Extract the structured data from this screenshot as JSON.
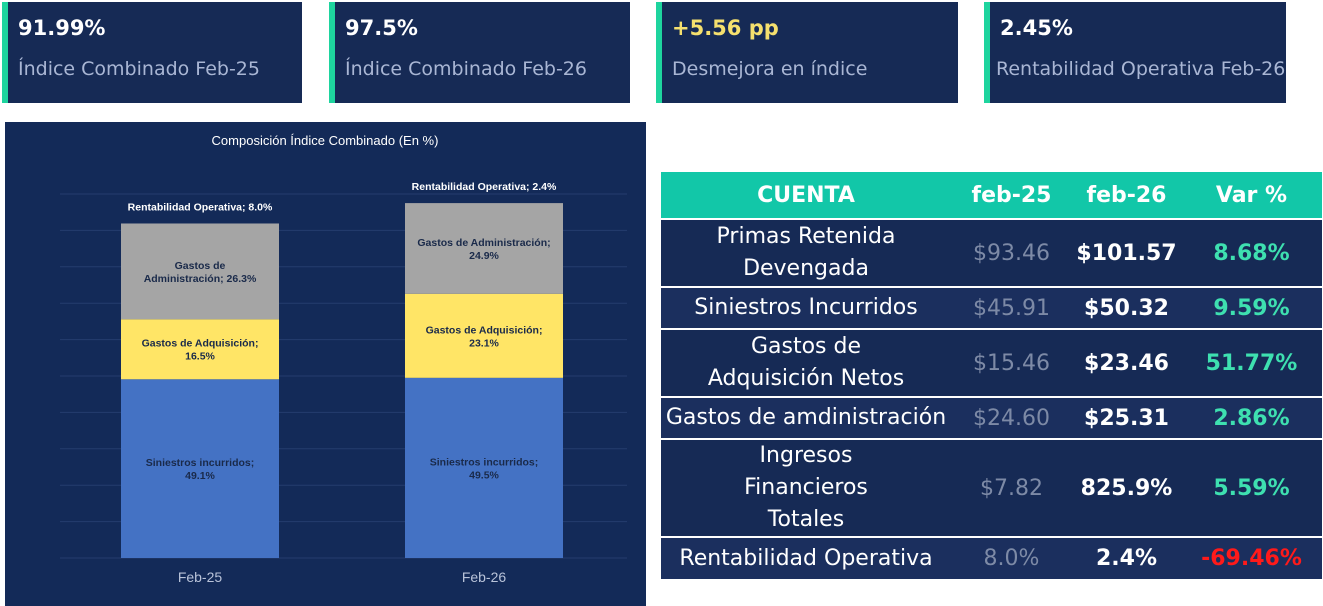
{
  "kpis": [
    {
      "value": "91.99%",
      "label": "Índice Combinado Feb-25",
      "value_color": "#ffffff"
    },
    {
      "value": "97.5%",
      "label": "Índice Combinado Feb-26",
      "value_color": "#ffffff"
    },
    {
      "value": "+5.56 pp",
      "label": "Desmejora en índice",
      "value_color": "#f5e06e"
    },
    {
      "value": "2.45%",
      "label": "Rentabilidad Operativa Feb-26",
      "value_color": "#ffffff"
    }
  ],
  "chart_data": {
    "type": "bar",
    "stacked": true,
    "title": "Composición Índice Combinado (En %)",
    "categories": [
      "Feb-25",
      "Feb-26"
    ],
    "series": [
      {
        "name": "Siniestros incurridos",
        "values": [
          49.1,
          49.5
        ],
        "color": "#4472c4",
        "labels": [
          "Siniestros incurridos;\n49.1%",
          "Siniestros incurridos;\n49.5%"
        ],
        "label_color": "#1a2a4a"
      },
      {
        "name": "Gastos de Adquisición",
        "values": [
          16.5,
          23.1
        ],
        "color": "#ffe566",
        "labels": [
          "Gastos de Adquisición;\n16.5%",
          "Gastos de Adquisición;\n23.1%"
        ],
        "label_color": "#1a2a4a"
      },
      {
        "name": "Gastos de Administración",
        "values": [
          26.3,
          24.9
        ],
        "color": "#a5a5a5",
        "labels": [
          "Gastos de\nAdministración; 26.3%",
          "Gastos de Administración;\n24.9%"
        ],
        "label_color": "#1a2a4a"
      },
      {
        "name": "Rentabilidad Operativa",
        "values": [
          8.0,
          2.4
        ],
        "color": "#132a58",
        "labels": [
          "Rentabilidad Operativa; 8.0%",
          "Rentabilidad Operativa; 2.4%"
        ],
        "label_color": "#ffffff"
      }
    ],
    "ylim": [
      0,
      100
    ],
    "grid": true,
    "legend": "none"
  },
  "table": {
    "headers": [
      "CUENTA",
      "feb-25",
      "feb-26",
      "Var %"
    ],
    "rows": [
      {
        "name": "Primas Retenida Devengada",
        "f25": "$93.46",
        "f26": "$101.57",
        "var": "8.68%",
        "var_color": "#3ee0b0"
      },
      {
        "name": "Siniestros Incurridos",
        "f25": "$45.91",
        "f26": "$50.32",
        "var": "9.59%",
        "var_color": "#3ee0b0"
      },
      {
        "name": "Gastos de Adquisición Netos",
        "f25": "$15.46",
        "f26": "$23.46",
        "var": "51.77%",
        "var_color": "#3ee0b0"
      },
      {
        "name": "Gastos de amdinistración",
        "f25": "$24.60",
        "f26": "$25.31",
        "var": "2.86%",
        "var_color": "#3ee0b0"
      },
      {
        "name": "Ingresos Financieros Totales",
        "f25": "$7.82",
        "f26": "825.9%",
        "var": "5.59%",
        "var_color": "#3ee0b0"
      },
      {
        "name": "Rentabilidad Operativa",
        "f25": "8.0%",
        "f26": "2.4%",
        "var": "-69.46%",
        "var_color": "#ff1a1a"
      }
    ]
  },
  "colors": {
    "navy": "#162a55",
    "accent": "#1ed49e",
    "header_teal": "#12c7a8"
  }
}
